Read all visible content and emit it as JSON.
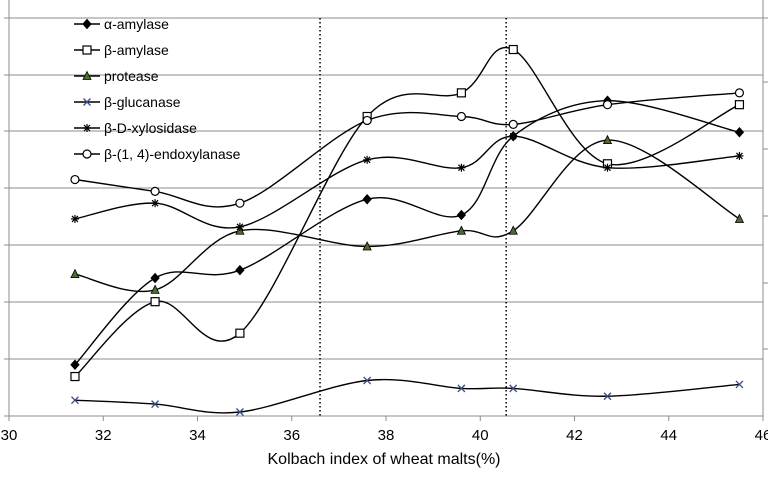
{
  "chart_data": {
    "type": "line",
    "title": "",
    "xlabel": "Kolbach index of wheat malts(%)",
    "ylabel": "",
    "xlim": [
      30,
      46
    ],
    "x_ticks": [
      "30",
      "32",
      "34",
      "36",
      "38",
      "40",
      "42",
      "44",
      "46"
    ],
    "y_ticks": [],
    "grid": "horizontal",
    "legend_position": "top-left",
    "reference_lines_x": [
      36.6,
      40.55
    ],
    "series": [
      {
        "name": "α-amylase",
        "marker": "diamond-filled",
        "x": [
          31.4,
          33.1,
          34.9,
          37.6,
          39.6,
          40.7,
          42.7,
          45.5
        ],
        "y": [
          0.12,
          0.34,
          0.36,
          0.54,
          0.5,
          0.7,
          0.79,
          0.71
        ]
      },
      {
        "name": "β-amylase",
        "marker": "square-open",
        "x": [
          31.4,
          33.1,
          34.9,
          37.6,
          39.6,
          40.7,
          42.7,
          45.5
        ],
        "y": [
          0.09,
          0.28,
          0.2,
          0.75,
          0.81,
          0.92,
          0.63,
          0.78
        ]
      },
      {
        "name": "protease",
        "marker": "triangle-filled",
        "x": [
          31.4,
          33.1,
          34.9,
          37.6,
          39.6,
          40.7,
          42.7,
          45.5
        ],
        "y": [
          0.35,
          0.31,
          0.46,
          0.42,
          0.46,
          0.46,
          0.69,
          0.49
        ]
      },
      {
        "name": "β-glucanase",
        "marker": "x",
        "x": [
          31.4,
          33.1,
          34.9,
          37.6,
          39.6,
          40.7,
          42.7,
          45.5
        ],
        "y": [
          0.03,
          0.02,
          0.0,
          0.08,
          0.06,
          0.06,
          0.04,
          0.07
        ]
      },
      {
        "name": "β-D-xylosidase",
        "marker": "star",
        "x": [
          31.4,
          33.1,
          34.9,
          37.6,
          39.6,
          40.7,
          42.7,
          45.5
        ],
        "y": [
          0.49,
          0.53,
          0.47,
          0.64,
          0.62,
          0.7,
          0.62,
          0.65
        ]
      },
      {
        "name": "β-(1, 4)-endoxylanase",
        "marker": "circle-open",
        "x": [
          31.4,
          33.1,
          34.9,
          37.6,
          39.6,
          40.7,
          42.7,
          45.5
        ],
        "y": [
          0.59,
          0.56,
          0.53,
          0.74,
          0.75,
          0.73,
          0.78,
          0.81
        ]
      }
    ]
  }
}
